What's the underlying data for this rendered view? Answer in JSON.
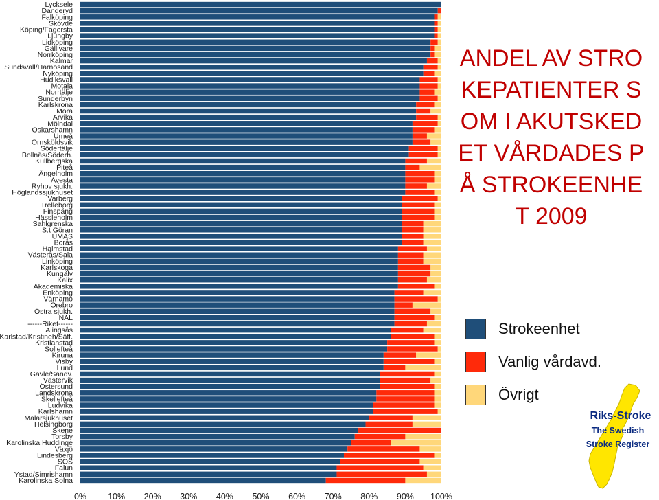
{
  "chart_data": {
    "type": "bar",
    "orientation": "horizontal",
    "stacked": true,
    "title": "ANDEL AV STROKEPATIENTER SOM I AKUTSKEDET VÅRDADES PÅ STROKEENHET 2009",
    "categories": [
      "Lycksele",
      "Danderyd",
      "Falköping",
      "Skövde",
      "Köping/Fagersta",
      "Ljungby",
      "Lidköping",
      "Gällivare",
      "Norrköping",
      "Kalmar",
      "Sundsvall/Härnösand",
      "Nyköping",
      "Hudiksvall",
      "Motala",
      "Norrtälje",
      "Sunderbyn",
      "Karlskrona",
      "Mora",
      "Arvika",
      "Mölndal",
      "Oskarshamn",
      "Umeå",
      "Örnsköldsvik",
      "Södertälje",
      "Bollnäs/Söderh.",
      "Kullbergska",
      "Piteå",
      "Ängelholm",
      "Avesta",
      "Ryhov sjukh.",
      "Höglandssjukhuset",
      "Varberg",
      "Trelleborg",
      "Finspång",
      "Hässleholm",
      "Sahlgrenska",
      "S:t Göran",
      "UMAS",
      "Borås",
      "Halmstad",
      "Västerås/Sala",
      "Linköping",
      "Karlskoga",
      "Kungälv",
      "Kalix",
      "Akademiska",
      "Enköping",
      "Värnamo",
      "Örebro",
      "Östra sjukh.",
      "NAL",
      "------Riket------",
      "Alingsås",
      "Karlstad/Kristineh/Säff.",
      "Kristianstad",
      "Sollefteå",
      "Kiruna",
      "Visby",
      "Lund",
      "Gävle/Sandv.",
      "Västervik",
      "Östersund",
      "Landskrona",
      "Skellefteå",
      "Ludvika",
      "Karlshamn",
      "Mälarsjukhuset",
      "Helsingborg",
      "Skene",
      "Torsby",
      "Karolinska Huddinge",
      "Växjö",
      "Lindesberg",
      "SOS",
      "Falun",
      "Ystad/Simrishamn",
      "Karolinska Solna"
    ],
    "series": [
      {
        "name": "Strokeenhet",
        "color": "#1f4e79",
        "values": [
          100,
          99,
          98,
          98,
          98,
          98,
          97,
          97,
          97,
          96,
          95,
          95,
          94,
          94,
          94,
          94,
          93,
          93,
          93,
          92,
          92,
          92,
          92,
          91,
          91,
          90,
          90,
          90,
          90,
          90,
          90,
          89,
          89,
          89,
          89,
          89,
          89,
          89,
          89,
          88,
          88,
          88,
          88,
          88,
          88,
          88,
          87,
          87,
          87,
          87,
          87,
          87,
          86,
          86,
          85,
          85,
          84,
          84,
          84,
          83,
          83,
          83,
          82,
          82,
          81,
          81,
          80,
          79,
          77,
          76,
          75,
          74,
          73,
          72,
          71,
          71,
          68
        ]
      },
      {
        "name": "Vanlig vårdavd.",
        "color": "#ff2a0a",
        "values": [
          0,
          1,
          1,
          1,
          1,
          1,
          2,
          1,
          1,
          3,
          4,
          3,
          5,
          5,
          4,
          5,
          5,
          4,
          6,
          7,
          6,
          4,
          5,
          8,
          8,
          6,
          4,
          8,
          8,
          6,
          8,
          10,
          9,
          9,
          9,
          6,
          6,
          6,
          6,
          8,
          7,
          7,
          9,
          9,
          8,
          10,
          8,
          12,
          5,
          10,
          11,
          9,
          9,
          12,
          13,
          14,
          9,
          14,
          6,
          15,
          14,
          15,
          16,
          16,
          17,
          18,
          12,
          13,
          23,
          14,
          11,
          20,
          25,
          22,
          24,
          25,
          22
        ]
      },
      {
        "name": "Övrigt",
        "color": "#ffd77a",
        "values": [
          0,
          0,
          1,
          1,
          1,
          1,
          1,
          2,
          2,
          1,
          1,
          2,
          1,
          1,
          2,
          1,
          2,
          3,
          1,
          1,
          2,
          4,
          3,
          1,
          1,
          4,
          6,
          2,
          2,
          4,
          2,
          1,
          2,
          2,
          2,
          5,
          5,
          5,
          5,
          4,
          5,
          5,
          3,
          3,
          4,
          2,
          5,
          1,
          8,
          3,
          2,
          4,
          5,
          2,
          2,
          1,
          7,
          2,
          10,
          2,
          3,
          2,
          2,
          2,
          2,
          1,
          8,
          8,
          0,
          10,
          14,
          6,
          2,
          6,
          5,
          4,
          10
        ]
      }
    ],
    "xlim": [
      0,
      100
    ],
    "x_ticks": [
      "0%",
      "10%",
      "20%",
      "30%",
      "40%",
      "50%",
      "60%",
      "70%",
      "80%",
      "90%",
      "100%"
    ],
    "legend_position": "right"
  },
  "title_text": "ANDEL AV STROKEPATIENTER SOM I AKUTSKEDET VÅRDADES PÅ STROKEENHET 2009",
  "legend": [
    {
      "label": "Strokeenhet",
      "color": "#1f4e79"
    },
    {
      "label": "Vanlig vårdavd.",
      "color": "#ff2a0a"
    },
    {
      "label": "Övrigt",
      "color": "#ffd77a"
    }
  ],
  "logo": {
    "title": "Riks-Stroke",
    "line1": "The Swedish",
    "line2": "Stroke Register",
    "map_color": "#ffe600",
    "text_color": "#0a2a80"
  }
}
